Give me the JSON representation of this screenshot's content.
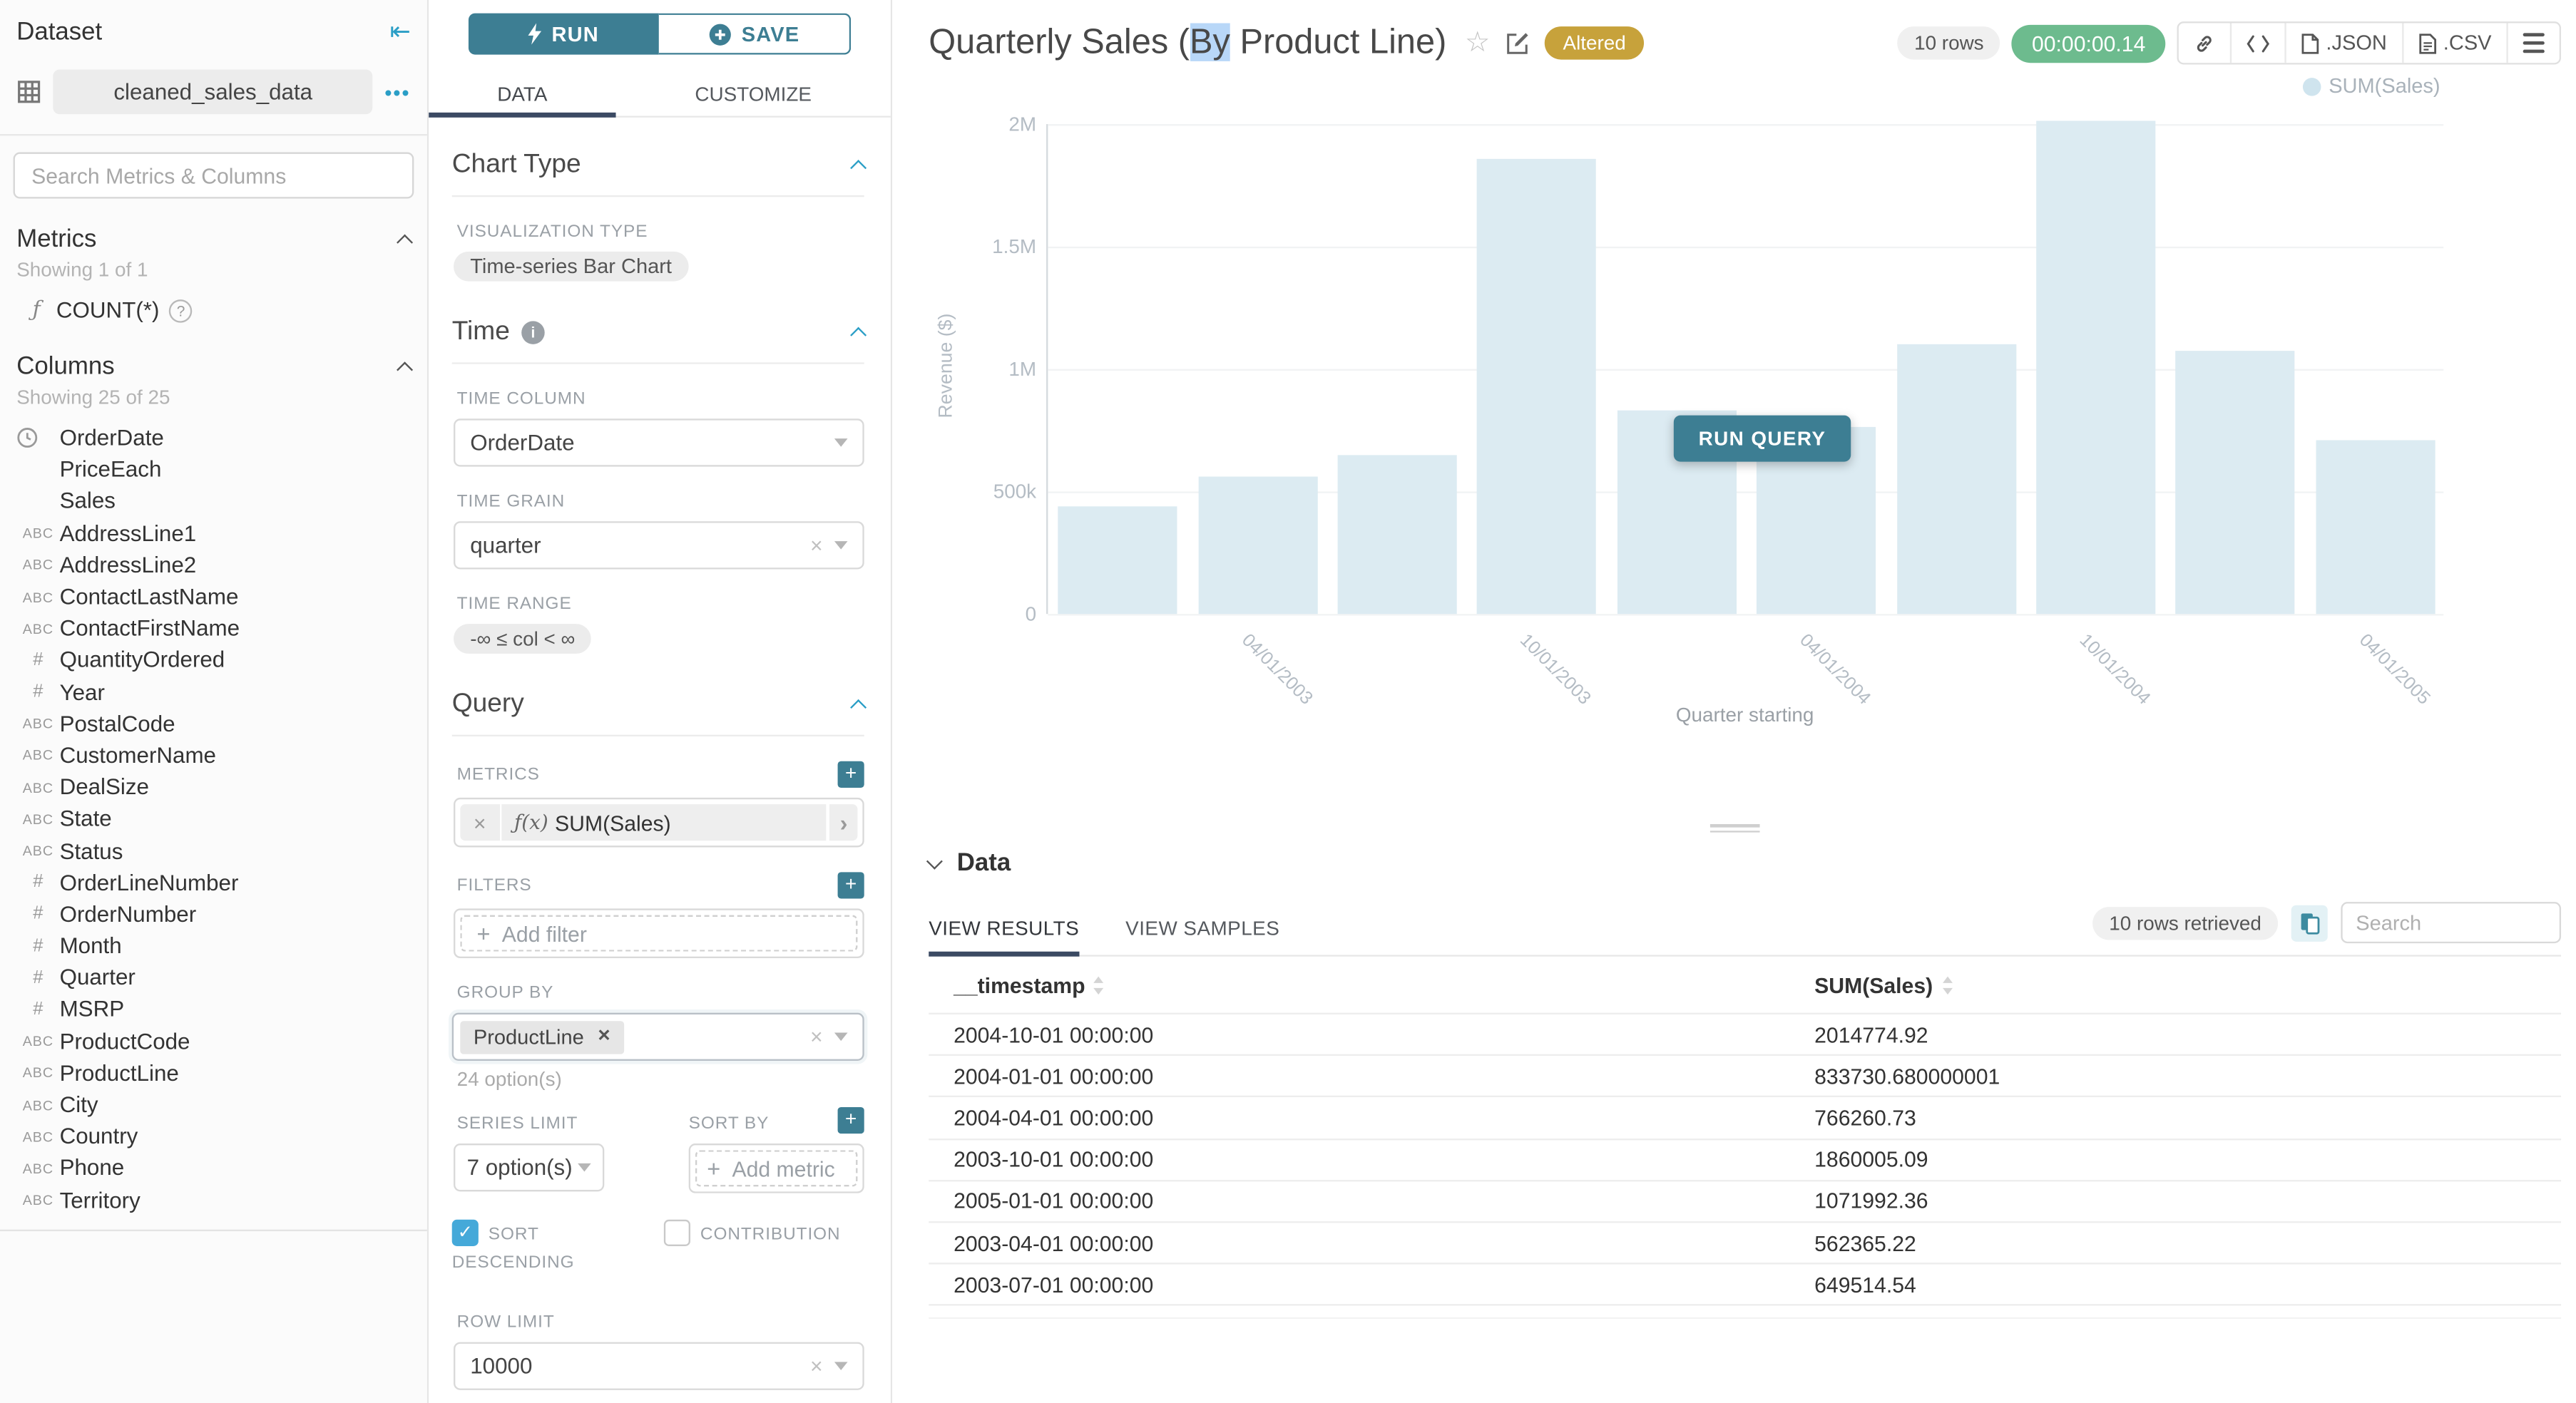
{
  "dataset_panel": {
    "title": "Dataset",
    "dataset_name": "cleaned_sales_data",
    "search_placeholder": "Search Metrics & Columns",
    "metrics_title": "Metrics",
    "metrics_showing": "Showing 1 of 1",
    "metrics": [
      {
        "prefix": "ƒ",
        "label": "COUNT(*)"
      }
    ],
    "columns_title": "Columns",
    "columns_showing": "Showing 25 of 25",
    "columns": [
      {
        "type": "time",
        "label": "OrderDate"
      },
      {
        "type": "none",
        "label": "PriceEach"
      },
      {
        "type": "none",
        "label": "Sales"
      },
      {
        "type": "abc",
        "label": "AddressLine1"
      },
      {
        "type": "abc",
        "label": "AddressLine2"
      },
      {
        "type": "abc",
        "label": "ContactLastName"
      },
      {
        "type": "abc",
        "label": "ContactFirstName"
      },
      {
        "type": "num",
        "label": "QuantityOrdered"
      },
      {
        "type": "num",
        "label": "Year"
      },
      {
        "type": "abc",
        "label": "PostalCode"
      },
      {
        "type": "abc",
        "label": "CustomerName"
      },
      {
        "type": "abc",
        "label": "DealSize"
      },
      {
        "type": "abc",
        "label": "State"
      },
      {
        "type": "abc",
        "label": "Status"
      },
      {
        "type": "num",
        "label": "OrderLineNumber"
      },
      {
        "type": "num",
        "label": "OrderNumber"
      },
      {
        "type": "num",
        "label": "Month"
      },
      {
        "type": "num",
        "label": "Quarter"
      },
      {
        "type": "num",
        "label": "MSRP"
      },
      {
        "type": "abc",
        "label": "ProductCode"
      },
      {
        "type": "abc",
        "label": "ProductLine"
      },
      {
        "type": "abc",
        "label": "City"
      },
      {
        "type": "abc",
        "label": "Country"
      },
      {
        "type": "abc",
        "label": "Phone"
      },
      {
        "type": "abc",
        "label": "Territory"
      }
    ]
  },
  "control_panel": {
    "run_label": "RUN",
    "save_label": "SAVE",
    "tab_data": "DATA",
    "tab_customize": "CUSTOMIZE",
    "chart_type_title": "Chart Type",
    "viz_type_label": "VISUALIZATION TYPE",
    "viz_type_value": "Time-series Bar Chart",
    "time_title": "Time",
    "time_column_label": "TIME COLUMN",
    "time_column_value": "OrderDate",
    "time_grain_label": "TIME GRAIN",
    "time_grain_value": "quarter",
    "time_range_label": "TIME RANGE",
    "time_range_value": "-∞ ≤ col < ∞",
    "query_title": "Query",
    "metrics_label": "METRICS",
    "metric_fn": "ƒ(x)",
    "metric_value": "SUM(Sales)",
    "filters_label": "FILTERS",
    "add_filter_label": "Add filter",
    "group_by_label": "GROUP BY",
    "group_by_value": "ProductLine",
    "group_by_options": "24 option(s)",
    "series_limit_label": "SERIES LIMIT",
    "series_limit_value": "7 option(s)",
    "sort_by_label": "SORT BY",
    "add_metric_label": "Add metric",
    "sort_descending_label": "SORT DESCENDING",
    "contribution_label": "CONTRIBUTION",
    "row_limit_label": "ROW LIMIT",
    "row_limit_value": "10000"
  },
  "header": {
    "title_pre": "Quarterly Sales (",
    "title_selected": "By",
    "title_post": " Product Line)",
    "altered_badge": "Altered",
    "rows_badge": "10 rows",
    "timer": "00:00:00.14",
    "export_json": ".JSON",
    "export_csv": ".CSV"
  },
  "chart": {
    "run_query_label": "RUN QUERY"
  },
  "chart_data": {
    "type": "bar",
    "title": "Quarterly Sales (By Product Line)",
    "xlabel": "Quarter starting",
    "ylabel": "Revenue ($)",
    "legend": [
      "SUM(Sales)"
    ],
    "legend_position": "top-right",
    "grid": true,
    "ylim": [
      0,
      2000000
    ],
    "ytick_labels": [
      "0",
      "500k",
      "1M",
      "1.5M",
      "2M"
    ],
    "categories": [
      "2003-01-01",
      "2003-04-01",
      "2003-07-01",
      "2003-10-01",
      "2004-01-01",
      "2004-04-01",
      "2004-07-01",
      "2004-10-01",
      "2005-01-01",
      "2005-04-01"
    ],
    "xtick_labels": [
      "04/01/2003",
      "10/01/2003",
      "04/01/2004",
      "10/01/2004",
      "04/01/2005"
    ],
    "series": [
      {
        "name": "SUM(Sales)",
        "values": [
          440000,
          562365.22,
          649514.54,
          1860005.09,
          833730.68,
          766260.73,
          1100000,
          2014774.92,
          1071992.36,
          710000
        ]
      }
    ],
    "bar_color": "#dcebf2"
  },
  "data_panel": {
    "title": "Data",
    "tab_results": "VIEW RESULTS",
    "tab_samples": "VIEW SAMPLES",
    "rows_retrieved": "10 rows retrieved",
    "search_placeholder": "Search",
    "col_timestamp": "__timestamp",
    "col_metric": "SUM(Sales)",
    "rows": [
      {
        "timestamp": "2004-10-01 00:00:00",
        "value": "2014774.92"
      },
      {
        "timestamp": "2004-01-01 00:00:00",
        "value": "833730.680000001"
      },
      {
        "timestamp": "2004-04-01 00:00:00",
        "value": "766260.73"
      },
      {
        "timestamp": "2003-10-01 00:00:00",
        "value": "1860005.09"
      },
      {
        "timestamp": "2005-01-01 00:00:00",
        "value": "1071992.36"
      },
      {
        "timestamp": "2003-04-01 00:00:00",
        "value": "562365.22"
      },
      {
        "timestamp": "2003-07-01 00:00:00",
        "value": "649514.54"
      }
    ]
  },
  "colors": {
    "primary_teal": "#3d7e93",
    "accent_blue": "#2a9ec6",
    "checkbox_blue": "#45a9d9",
    "tab_underline": "#3b4a63",
    "altered_gold": "#c7a23b",
    "timer_green": "#6dbb8e",
    "bar_fill": "#dcebf2",
    "selection_blue": "#b8d7f8"
  }
}
